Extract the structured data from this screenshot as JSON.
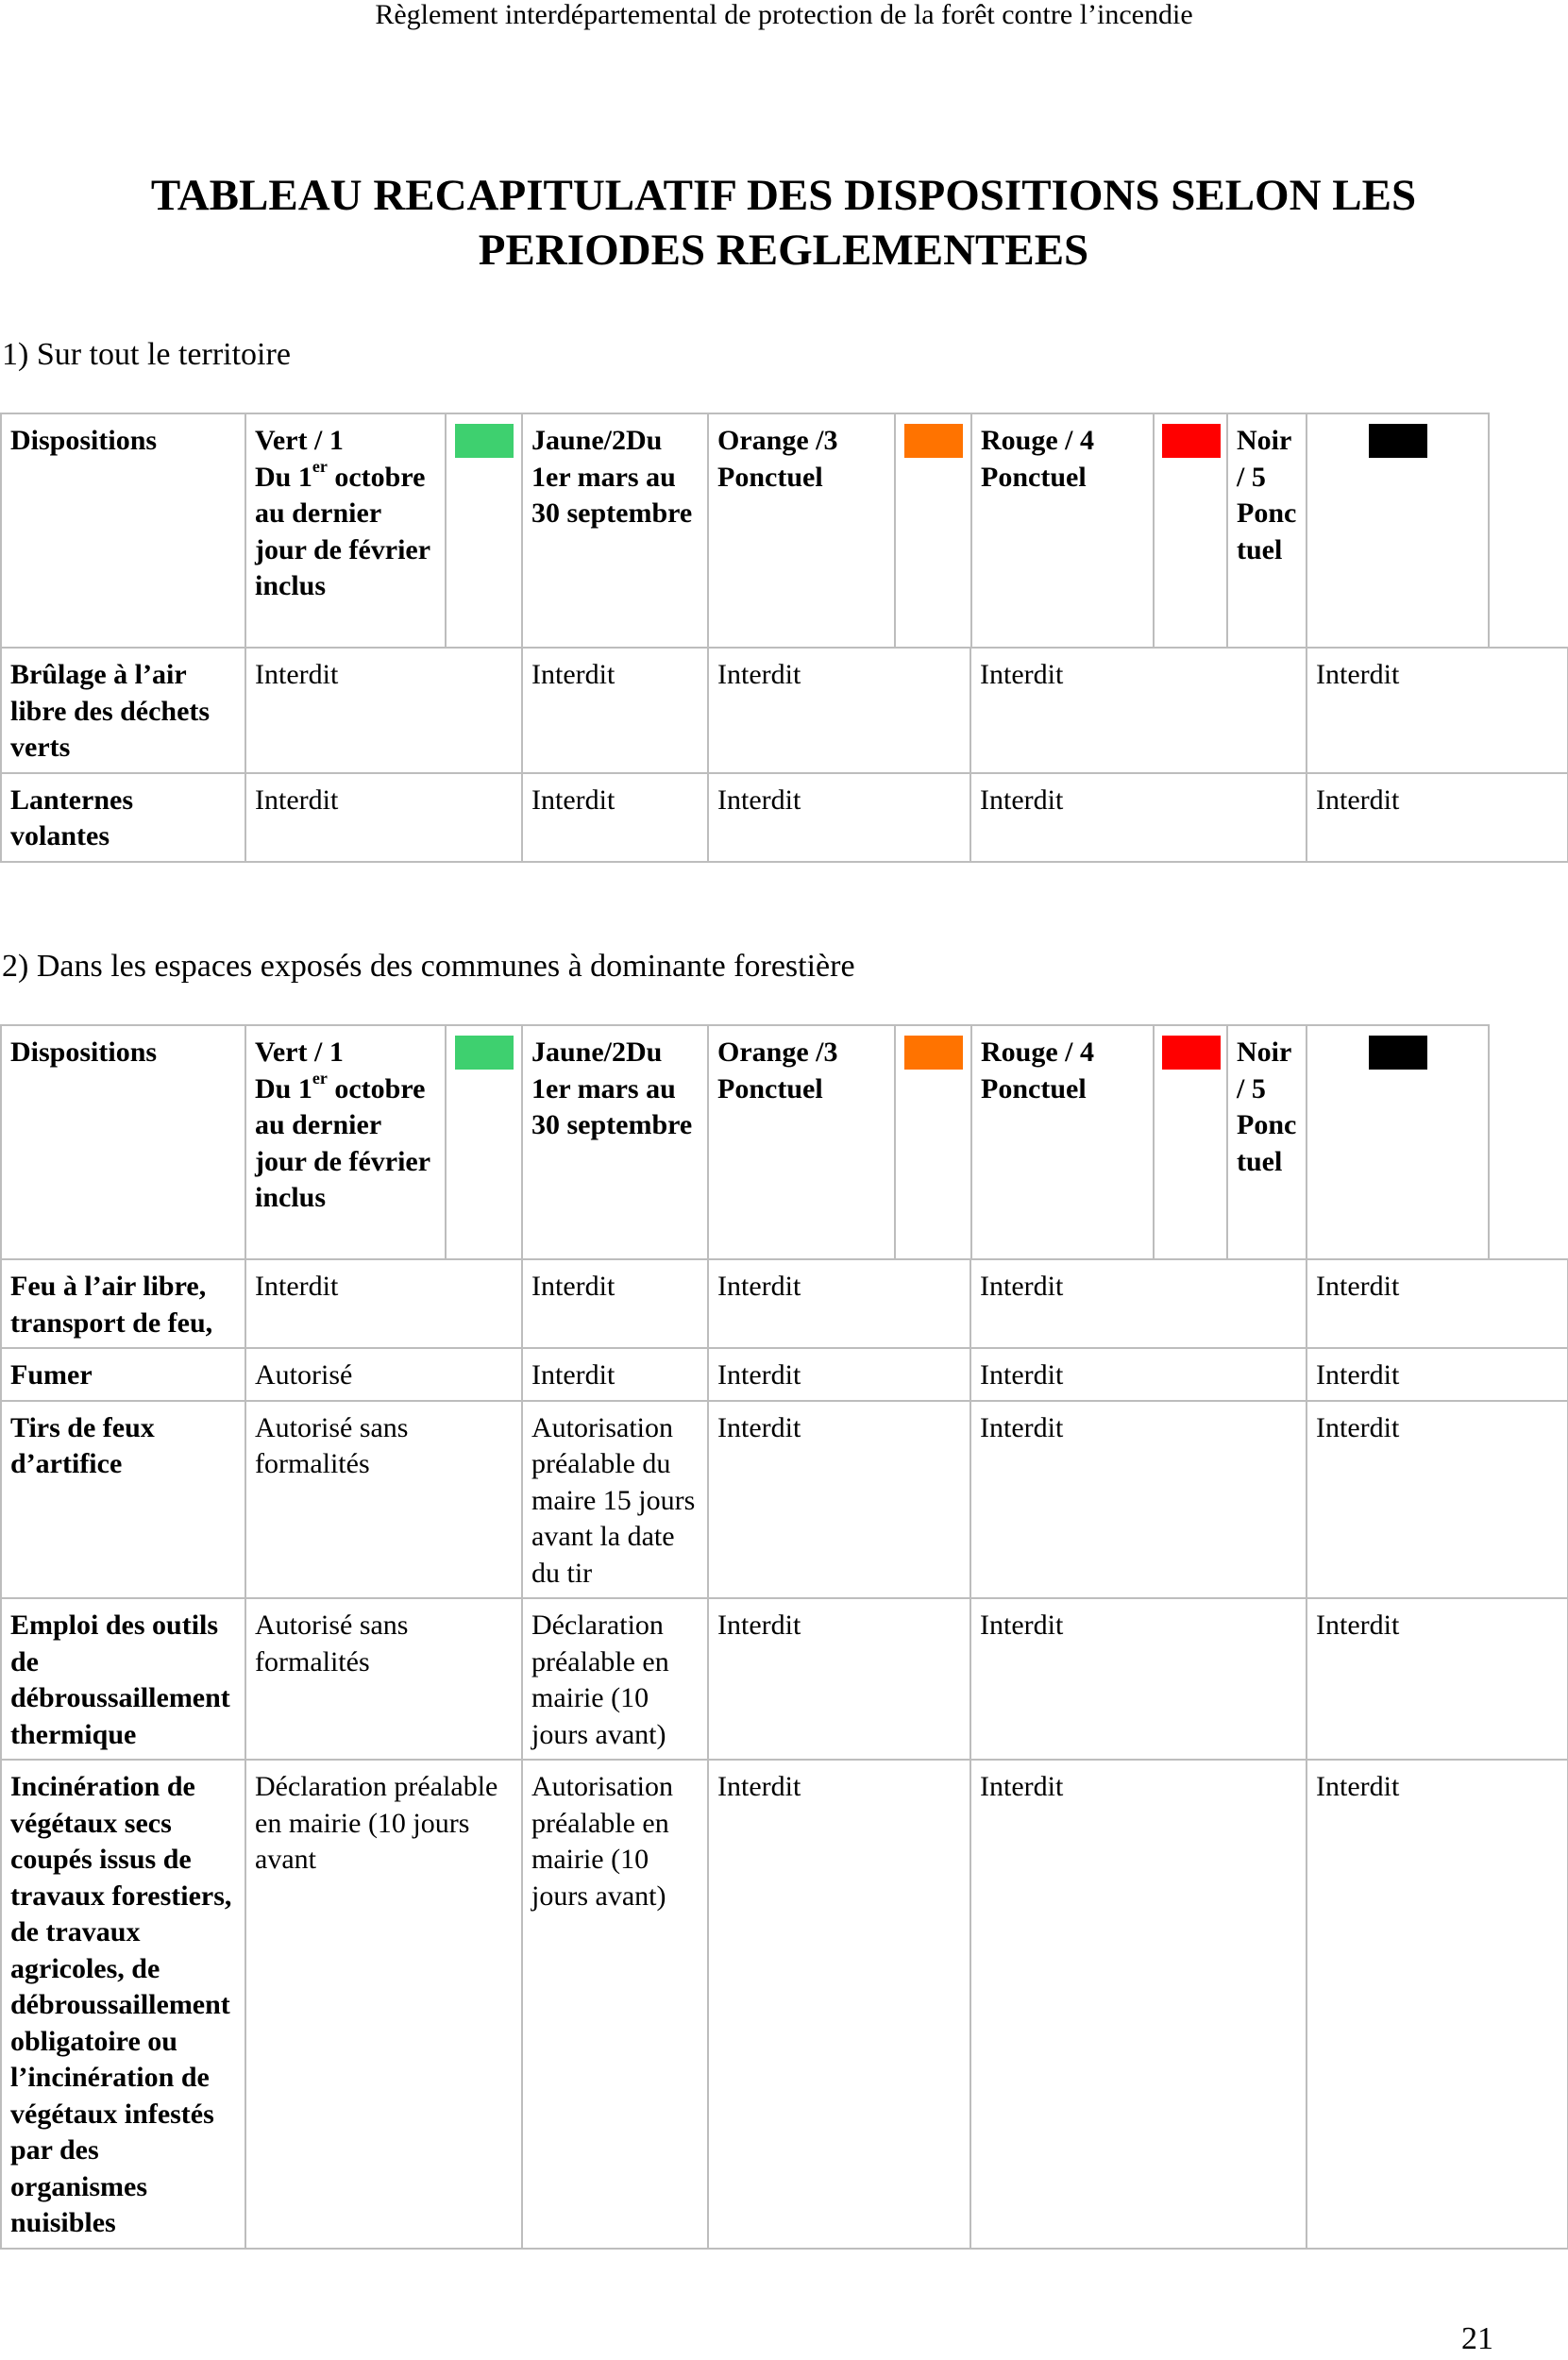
{
  "running_header": "Règlement interdépartemental de protection de la forêt contre l’incendie",
  "title": "TABLEAU RECAPITULATIF DES DISPOSITIONS SELON LES PERIODES REGLEMENTEES",
  "page_number": "21",
  "colors": {
    "vert": "#3ed06f",
    "jaune": "#ffd300",
    "orange": "#ff7300",
    "rouge": "#ff0000",
    "noir": "#000000"
  },
  "columns": {
    "dispositions": "Dispositions",
    "vert_title": "Vert / 1",
    "vert_du": "Du 1",
    "vert_sup": "er",
    "vert_rest": "octobre au dernier jour de février inclus",
    "jaune": "Jaune/2Du 1er mars au 30 septembre",
    "orange": "Orange /3 Ponctuel",
    "rouge": "Rouge / 4 Ponctuel",
    "noir": "Noir / 5 Ponctuel"
  },
  "section1": {
    "heading": "1) Sur tout le territoire",
    "rows": [
      {
        "label": "Brûlage à l’air libre des déchets verts",
        "vert": "Interdit",
        "jaune": "Interdit",
        "orange": "Interdit",
        "rouge": "Interdit",
        "noir": "Interdit"
      },
      {
        "label": "Lanternes volantes",
        "vert": "Interdit",
        "jaune": "Interdit",
        "orange": "Interdit",
        "rouge": "Interdit",
        "noir": "Interdit"
      }
    ]
  },
  "section2": {
    "heading": "2) Dans les espaces exposés des communes à dominante forestière",
    "rows": [
      {
        "label": "Feu à l’air libre, transport de feu,",
        "vert": "Interdit",
        "jaune": "Interdit",
        "orange": "Interdit",
        "rouge": "Interdit",
        "noir": "Interdit"
      },
      {
        "label": "Fumer",
        "vert": "Autorisé",
        "jaune": "Interdit",
        "orange": "Interdit",
        "rouge": "Interdit",
        "noir": "Interdit"
      },
      {
        "label": "Tirs de feux d’artifice",
        "vert": "Autorisé sans formalités",
        "jaune": "Autorisation préalable du maire 15 jours avant la date du tir",
        "orange": "Interdit",
        "rouge": "Interdit",
        "noir": "Interdit"
      },
      {
        "label": "Emploi des outils de débroussaillement thermique",
        "vert": "Autorisé sans formalités",
        "jaune": "Déclaration préalable en mairie (10 jours avant)",
        "orange": "Interdit",
        "rouge": "Interdit",
        "noir": "Interdit"
      },
      {
        "label": "Incinération de végétaux secs coupés issus de travaux forestiers, de travaux agricoles, de débroussaillement obligatoire ou l’incinération de végétaux infestés par des organismes nuisibles",
        "vert": "Déclaration préalable en mairie (10 jours avant",
        "jaune": "Autorisation préalable en mairie (10 jours avant)",
        "orange": "Interdit",
        "rouge": "Interdit",
        "noir": "Interdit"
      }
    ]
  }
}
